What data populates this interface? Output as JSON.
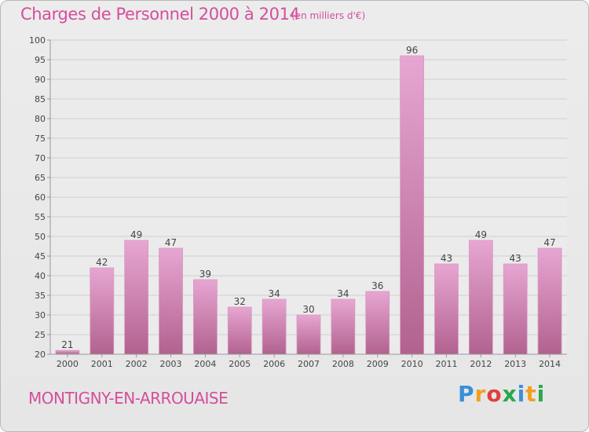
{
  "header": {
    "title": "Charges de Personnel 2000 à 2014",
    "unit": "(en milliers d'€)"
  },
  "commune": "MONTIGNY-EN-ARROUAISE",
  "logo": {
    "letters": [
      "P",
      "r",
      "o",
      "x",
      "i",
      "t",
      "i"
    ],
    "colors": [
      "#3a8fd8",
      "#f0a020",
      "#e04040",
      "#2aa84a",
      "#3a8fd8",
      "#f0a020",
      "#2aa84a"
    ]
  },
  "colors": {
    "text_accent": "#d44e9c",
    "bar_top": "#e7a6d2",
    "bar_bottom": "#b2628f",
    "grid": "#cfcfcf",
    "plot_bg": "#ebebeb"
  },
  "chart_data": {
    "type": "bar",
    "title": "Charges de Personnel 2000 à 2014",
    "subtitle": "(en milliers d'€)",
    "categories": [
      "2000",
      "2001",
      "2002",
      "2003",
      "2004",
      "2005",
      "2006",
      "2007",
      "2008",
      "2009",
      "2010",
      "2011",
      "2012",
      "2013",
      "2014"
    ],
    "values": [
      21,
      42,
      49,
      47,
      39,
      32,
      34,
      30,
      34,
      36,
      96,
      43,
      49,
      43,
      47
    ],
    "ylim": [
      20,
      100
    ],
    "yticks": [
      20,
      25,
      30,
      35,
      40,
      45,
      50,
      55,
      60,
      65,
      70,
      75,
      80,
      85,
      90,
      95,
      100
    ],
    "xlabel": "",
    "ylabel": "",
    "grid": true,
    "data_labels": true
  }
}
